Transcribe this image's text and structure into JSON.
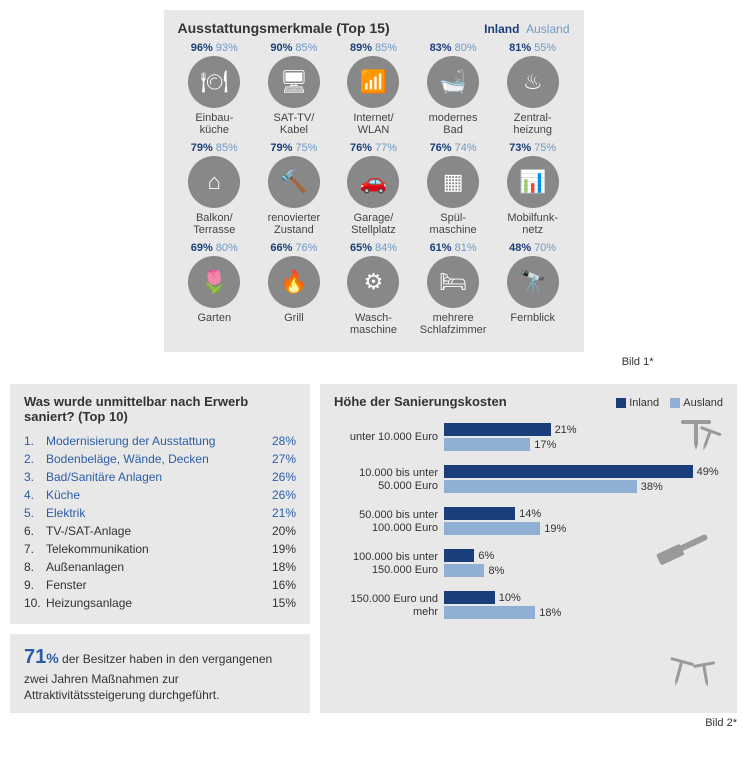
{
  "panel1": {
    "title": "Ausstattungsmerkmale (Top 15)",
    "legend_inland": "Inland",
    "legend_ausland": "Ausland",
    "caption": "Bild 1*",
    "colors": {
      "inland": "#1a3e7a",
      "ausland_text": "#6f99c7",
      "circle": "#888888",
      "ausland_bar": "#8fb0d4"
    },
    "features": [
      {
        "label": "Einbau-\nküche",
        "inland": "96%",
        "ausland": "93%",
        "glyph": "🍽"
      },
      {
        "label": "SAT-TV/\nKabel",
        "inland": "90%",
        "ausland": "85%",
        "glyph": "🖥"
      },
      {
        "label": "Internet/\nWLAN",
        "inland": "89%",
        "ausland": "85%",
        "glyph": "📶"
      },
      {
        "label": "modernes\nBad",
        "inland": "83%",
        "ausland": "80%",
        "glyph": "🛁"
      },
      {
        "label": "Zentral-\nheizung",
        "inland": "81%",
        "ausland": "55%",
        "glyph": "♨"
      },
      {
        "label": "Balkon/\nTerrasse",
        "inland": "79%",
        "ausland": "85%",
        "glyph": "⌂"
      },
      {
        "label": "renovierter\nZustand",
        "inland": "79%",
        "ausland": "75%",
        "glyph": "🔨"
      },
      {
        "label": "Garage/\nStellplatz",
        "inland": "76%",
        "ausland": "77%",
        "glyph": "🚗"
      },
      {
        "label": "Spül-\nmaschine",
        "inland": "76%",
        "ausland": "74%",
        "glyph": "▦"
      },
      {
        "label": "Mobilfunk-\nnetz",
        "inland": "73%",
        "ausland": "75%",
        "glyph": "📊"
      },
      {
        "label": "Garten",
        "inland": "69%",
        "ausland": "80%",
        "glyph": "🌷"
      },
      {
        "label": "Grill",
        "inland": "66%",
        "ausland": "76%",
        "glyph": "🔥"
      },
      {
        "label": "Wasch-\nmaschine",
        "inland": "65%",
        "ausland": "84%",
        "glyph": "⚙"
      },
      {
        "label": "mehrere\nSchlafzimmer",
        "inland": "61%",
        "ausland": "81%",
        "glyph": "🛏"
      },
      {
        "label": "Fernblick",
        "inland": "48%",
        "ausland": "70%",
        "glyph": "🔭"
      }
    ]
  },
  "panel2": {
    "title": "Was wurde unmittelbar nach Erwerb saniert? (Top 10)",
    "highlight_count": 5,
    "color_highlight": "#2a5da8",
    "rows": [
      {
        "n": "1.",
        "label": "Modernisierung der Ausstattung",
        "pct": "28%"
      },
      {
        "n": "2.",
        "label": "Bodenbeläge, Wände, Decken",
        "pct": "27%"
      },
      {
        "n": "3.",
        "label": "Bad/Sanitäre Anlagen",
        "pct": "26%"
      },
      {
        "n": "4.",
        "label": "Küche",
        "pct": "26%"
      },
      {
        "n": "5.",
        "label": "Elektrik",
        "pct": "21%"
      },
      {
        "n": "6.",
        "label": "TV-/SAT-Anlage",
        "pct": "20%"
      },
      {
        "n": "7.",
        "label": "Telekommunikation",
        "pct": "19%"
      },
      {
        "n": "8.",
        "label": "Außenanlagen",
        "pct": "18%"
      },
      {
        "n": "9.",
        "label": "Fenster",
        "pct": "16%"
      },
      {
        "n": "10.",
        "label": "Heizungsanlage",
        "pct": "15%"
      }
    ],
    "stat_num": "71",
    "stat_pct": "%",
    "stat_text": " der Besitzer haben in den vergangenen zwei Jahren Maßnahmen zur Attraktivitätssteigerung durchgeführt."
  },
  "panel3": {
    "title": "Höhe der Sanierungskosten",
    "legend_inland": "Inland",
    "legend_ausland": "Ausland",
    "caption": "Bild 2*",
    "colors": {
      "inland": "#1a3e7a",
      "ausland": "#8fb0d4"
    },
    "xmax": 55,
    "categories": [
      {
        "label": "unter 10.000 Euro",
        "inland": 21,
        "ausland": 17
      },
      {
        "label": "10.000 bis unter\n50.000 Euro",
        "inland": 49,
        "ausland": 38
      },
      {
        "label": "50.000 bis unter\n100.000 Euro",
        "inland": 14,
        "ausland": 19
      },
      {
        "label": "100.000 bis unter\n150.000 Euro",
        "inland": 6,
        "ausland": 8
      },
      {
        "label": "150.000 Euro und mehr",
        "inland": 10,
        "ausland": 18
      }
    ]
  }
}
